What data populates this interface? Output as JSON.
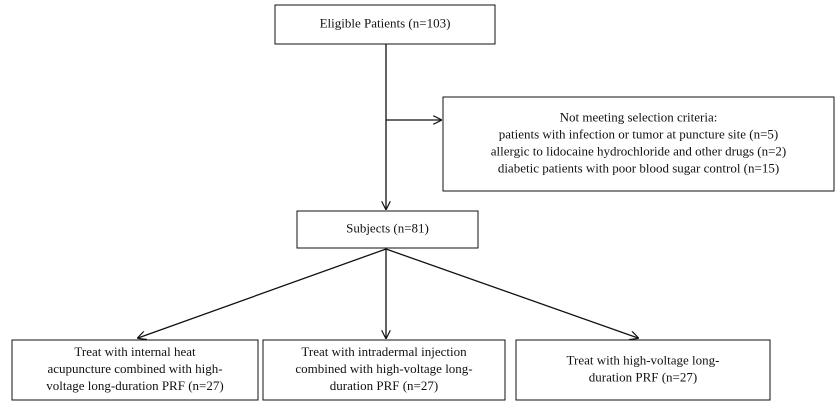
{
  "nodes": [
    {
      "lines": [
        "Eligible Patients (n=103)"
      ]
    },
    {
      "lines": [
        "Not meeting selection criteria:",
        "patients with infection or tumor at puncture site (n=5)",
        "allergic to lidocaine hydrochloride and other drugs (n=2)",
        "diabetic patients with poor blood sugar control (n=15)"
      ]
    },
    {
      "lines": [
        "Subjects (n=81)"
      ]
    },
    {
      "lines": [
        "Treat with internal heat",
        "acupuncture combined with high-",
        "voltage long-duration PRF (n=27)"
      ]
    },
    {
      "lines": [
        "Treat with intradermal injection",
        "combined with high-voltage long-",
        "duration PRF (n=27)"
      ]
    },
    {
      "lines": [
        "Treat with high-voltage long-",
        "duration PRF (n=27)"
      ]
    }
  ]
}
